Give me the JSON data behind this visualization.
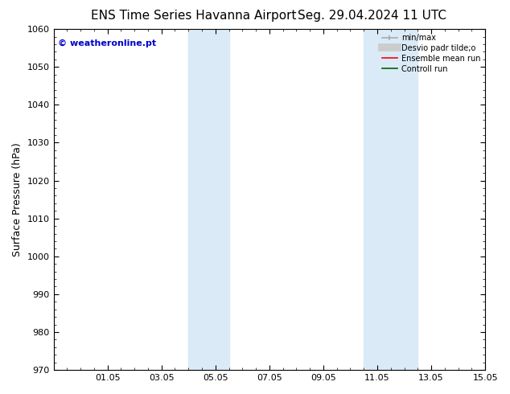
{
  "title_left": "ENS Time Series Havanna Airport",
  "title_right": "Seg. 29.04.2024 11 UTC",
  "ylabel": "Surface Pressure (hPa)",
  "ylim": [
    970,
    1060
  ],
  "yticks": [
    970,
    980,
    990,
    1000,
    1010,
    1020,
    1030,
    1040,
    1050,
    1060
  ],
  "xtick_labels": [
    "01.05",
    "03.05",
    "05.05",
    "07.05",
    "09.05",
    "11.05",
    "13.05",
    "15.05"
  ],
  "xtick_positions": [
    2,
    4,
    6,
    8,
    10,
    12,
    14,
    16
  ],
  "shaded_bands": [
    {
      "x_start": 5.0,
      "x_end": 6.5
    },
    {
      "x_start": 11.5,
      "x_end": 13.5
    }
  ],
  "shaded_color": "#daeaf7",
  "background_color": "#ffffff",
  "watermark": "© weatheronline.pt",
  "watermark_color": "#0000cc",
  "title_fontsize": 11,
  "ylabel_fontsize": 9,
  "tick_fontsize": 8,
  "watermark_fontsize": 8
}
